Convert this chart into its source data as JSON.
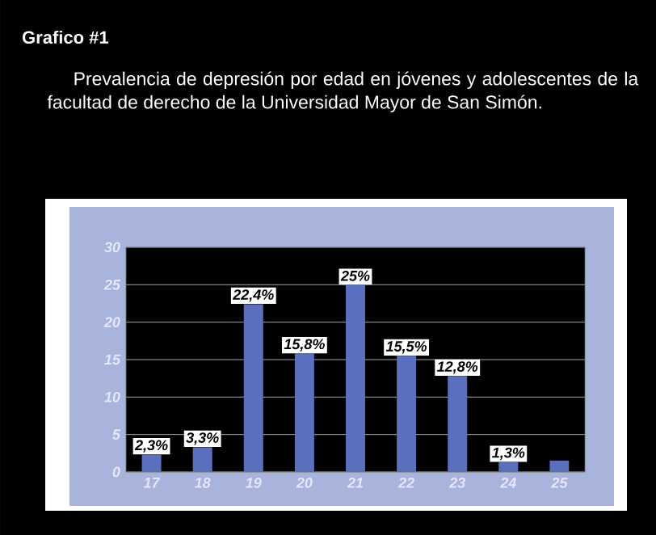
{
  "chart_data": {
    "type": "bar",
    "title": "Grafico #1",
    "subtitle": "Prevalencia de depresión por edad en jóvenes y adolescentes de la facultad de derecho de la Universidad Mayor de San Simón.",
    "categories": [
      "17",
      "18",
      "19",
      "20",
      "21",
      "22",
      "23",
      "24",
      "25"
    ],
    "values": [
      2.3,
      3.3,
      22.4,
      15.8,
      25,
      15.5,
      12.8,
      1.3,
      1.5
    ],
    "value_labels": [
      "2,3%",
      "3,3%",
      "22,4%",
      "15,8%",
      "25%",
      "15,5%",
      "12,8%",
      "1,3%",
      null
    ],
    "color": "#5b6fbf",
    "ylim": [
      0,
      30
    ],
    "yticks": [
      0,
      5,
      10,
      15,
      20,
      25,
      30
    ],
    "grid": "y"
  }
}
